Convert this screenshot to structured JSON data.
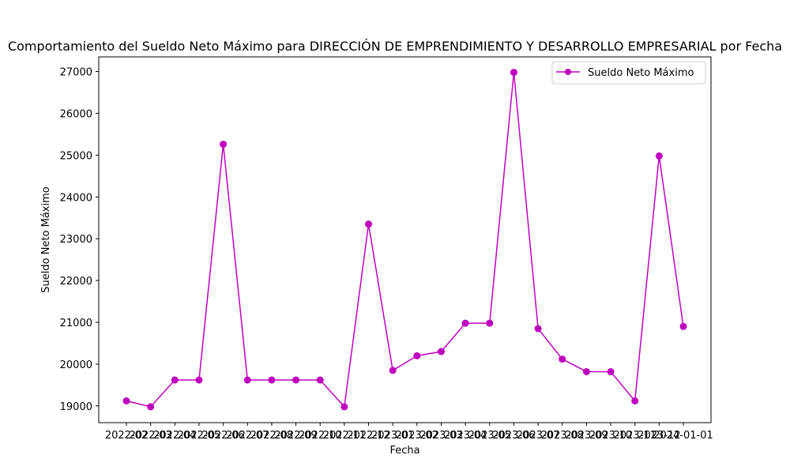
{
  "chart_data": {
    "type": "line",
    "title": "Comportamiento del Sueldo Neto Máximo para DIRECCIÓN DE EMPRENDIMIENTO Y DESARROLLO EMPRESARIAL por Fecha",
    "xlabel": "Fecha",
    "ylabel": "Sueldo Neto Máximo",
    "x": [
      "2022-02",
      "2022-03",
      "2022-04",
      "2022-05",
      "2022-06",
      "2022-07",
      "2022-08",
      "2022-09",
      "2022-10",
      "2022-11",
      "2022-12",
      "2023-01",
      "2023-02",
      "2023-03",
      "2023-04",
      "2023-05",
      "2023-06",
      "2023-07",
      "2023-08",
      "2023-09",
      "2023-10",
      "2023-11",
      "2023-12",
      "2024-01-01"
    ],
    "x_tick_labels": [
      "2022-02",
      "2022-03",
      "2022-04",
      "2022-05",
      "2022-06",
      "2022-07",
      "2022-08",
      "2022-09",
      "2022-10",
      "2022-11",
      "2022-12",
      "2023-01",
      "2023-02",
      "2023-03",
      "2023-04",
      "2023-05",
      "2023-06",
      "2023-07",
      "2023-08",
      "2023-09",
      "2023-10",
      "2023-11",
      "2023-12",
      "2024-01-01"
    ],
    "series": [
      {
        "name": "Sueldo Neto Máximo",
        "color": "#bf00bf",
        "marker": "circle",
        "values": [
          19120,
          18980,
          19620,
          19620,
          25260,
          19620,
          19620,
          19620,
          19620,
          18980,
          23350,
          19850,
          20200,
          20300,
          20980,
          20980,
          26980,
          20850,
          20120,
          19820,
          19820,
          19120,
          24980,
          20900
        ]
      }
    ],
    "ylim": [
      18600,
      27350
    ],
    "yticks": [
      19000,
      20000,
      21000,
      22000,
      23000,
      24000,
      25000,
      26000,
      27000
    ],
    "grid": false,
    "legend_position": "top-right"
  }
}
